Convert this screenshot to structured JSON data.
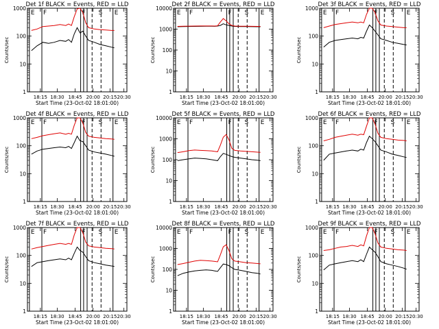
{
  "colors": {
    "black_series": "#000000",
    "red_series": "#e00000",
    "frame": "#000000",
    "background": "#ffffff"
  },
  "shared": {
    "xlabel": "Start Time (23-Oct-02 18:01:00)",
    "ylabel": "Counts/sec",
    "y_tick_labels": [
      "1",
      "10",
      "100",
      "1000"
    ],
    "y_tick_labels_wide": [
      "1",
      "10",
      "100",
      "1000",
      "10000"
    ],
    "x_tick_labels": [
      "18:15",
      "18:30",
      "18:45",
      "20:00",
      "20:15",
      "20:30"
    ],
    "x_range_minutes": [
      18.0,
      19.6
    ],
    "letters": {
      "E": "E",
      "F": "F",
      "S": "S"
    }
  },
  "chart_data": [
    {
      "type": "line",
      "title": "Det 1f BLACK = Events, RED = LLD",
      "ylim": [
        1,
        1000
      ],
      "log_y": true,
      "series": [
        {
          "name": "BLACK",
          "color": "#000000",
          "x": [
            18.0,
            18.1,
            18.2,
            18.3,
            18.4,
            18.5,
            18.6,
            18.65,
            18.7,
            18.75,
            18.8,
            18.85,
            18.9,
            18.95,
            19.0,
            19.1,
            19.2,
            19.3,
            19.4,
            19.45
          ],
          "y": [
            30,
            45,
            60,
            55,
            60,
            70,
            65,
            75,
            60,
            120,
            200,
            130,
            150,
            100,
            70,
            60,
            50,
            45,
            40,
            38
          ]
        },
        {
          "name": "RED",
          "color": "#e00000",
          "x": [
            18.0,
            18.1,
            18.2,
            18.3,
            18.4,
            18.5,
            18.6,
            18.65,
            18.7,
            18.75,
            18.8,
            18.85,
            18.9,
            18.95,
            19.0,
            19.1,
            19.2,
            19.3,
            19.4,
            19.45
          ],
          "y": [
            160,
            180,
            220,
            230,
            240,
            260,
            240,
            270,
            240,
            500,
            950,
            1000,
            700,
            300,
            200,
            180,
            170,
            165,
            160,
            160
          ]
        }
      ]
    },
    {
      "type": "line",
      "title": "Det 2f BLACK = Events, RED = LLD",
      "ylim": [
        1,
        10000
      ],
      "log_y": true,
      "series": [
        {
          "name": "BLACK",
          "color": "#000000",
          "x": [
            18.0,
            18.1,
            18.2,
            18.3,
            18.4,
            18.5,
            18.6,
            18.65,
            18.7,
            18.75,
            18.8,
            18.85,
            18.9,
            18.95,
            19.0,
            19.1,
            19.2,
            19.3,
            19.4,
            19.45
          ],
          "y": [
            1300,
            1320,
            1340,
            1350,
            1360,
            1380,
            1370,
            1360,
            1400,
            1500,
            1800,
            1600,
            1500,
            1400,
            1350,
            1330,
            1320,
            1310,
            1300,
            1300
          ]
        },
        {
          "name": "RED",
          "color": "#e00000",
          "x": [
            18.0,
            18.1,
            18.2,
            18.3,
            18.4,
            18.5,
            18.6,
            18.65,
            18.7,
            18.75,
            18.8,
            18.85,
            18.9,
            18.95,
            19.0,
            19.1,
            19.2,
            19.3,
            19.4,
            19.45
          ],
          "y": [
            1350,
            1370,
            1390,
            1400,
            1410,
            1420,
            1410,
            1400,
            1450,
            2200,
            3200,
            2500,
            1800,
            1500,
            1400,
            1380,
            1370,
            1360,
            1350,
            1350
          ]
        }
      ]
    },
    {
      "type": "line",
      "title": "Det 3f BLACK = Events, RED = LLD",
      "ylim": [
        1,
        1000
      ],
      "log_y": true,
      "series": [
        {
          "name": "BLACK",
          "color": "#000000",
          "x": [
            18.0,
            18.1,
            18.2,
            18.3,
            18.4,
            18.5,
            18.6,
            18.65,
            18.7,
            18.75,
            18.8,
            18.85,
            18.9,
            18.95,
            19.0,
            19.1,
            19.2,
            19.3,
            19.4,
            19.45
          ],
          "y": [
            40,
            60,
            70,
            75,
            80,
            85,
            80,
            90,
            85,
            150,
            250,
            200,
            150,
            110,
            80,
            70,
            60,
            55,
            50,
            48
          ]
        },
        {
          "name": "RED",
          "color": "#e00000",
          "x": [
            18.0,
            18.1,
            18.2,
            18.3,
            18.4,
            18.5,
            18.6,
            18.65,
            18.7,
            18.75,
            18.8,
            18.85,
            18.9,
            18.95,
            19.0,
            19.1,
            19.2,
            19.3,
            19.4,
            19.45
          ],
          "y": [
            200,
            230,
            260,
            280,
            300,
            320,
            300,
            320,
            300,
            600,
            1000,
            1000,
            700,
            350,
            250,
            230,
            220,
            210,
            200,
            200
          ]
        }
      ]
    },
    {
      "type": "line",
      "title": "Det 4f BLACK = Events, RED = LLD",
      "ylim": [
        1,
        1000
      ],
      "log_y": true,
      "series": [
        {
          "name": "BLACK",
          "color": "#000000",
          "x": [
            18.0,
            18.1,
            18.2,
            18.3,
            18.4,
            18.5,
            18.6,
            18.65,
            18.7,
            18.75,
            18.8,
            18.85,
            18.9,
            18.95,
            19.0,
            19.1,
            19.2,
            19.3,
            19.4,
            19.45
          ],
          "y": [
            50,
            65,
            75,
            80,
            85,
            90,
            85,
            95,
            80,
            130,
            220,
            150,
            140,
            100,
            70,
            60,
            55,
            50,
            45,
            42
          ]
        },
        {
          "name": "RED",
          "color": "#e00000",
          "x": [
            18.0,
            18.1,
            18.2,
            18.3,
            18.4,
            18.5,
            18.6,
            18.65,
            18.7,
            18.75,
            18.8,
            18.85,
            18.9,
            18.95,
            19.0,
            19.1,
            19.2,
            19.3,
            19.4,
            19.45
          ],
          "y": [
            180,
            200,
            230,
            250,
            270,
            290,
            260,
            280,
            260,
            550,
            1000,
            1000,
            650,
            300,
            220,
            200,
            190,
            180,
            175,
            170
          ]
        }
      ]
    },
    {
      "type": "line",
      "title": "Det 5f BLACK = Events, RED = LLD",
      "ylim": [
        1,
        10000
      ],
      "log_y": true,
      "series": [
        {
          "name": "BLACK",
          "color": "#000000",
          "x": [
            18.0,
            18.1,
            18.2,
            18.3,
            18.4,
            18.5,
            18.6,
            18.65,
            18.7,
            18.75,
            18.8,
            18.85,
            18.9,
            18.95,
            19.0,
            19.1,
            19.2,
            19.3,
            19.4,
            19.45
          ],
          "y": [
            90,
            100,
            110,
            120,
            115,
            110,
            100,
            95,
            90,
            140,
            200,
            180,
            160,
            140,
            130,
            120,
            110,
            100,
            95,
            90
          ]
        },
        {
          "name": "RED",
          "color": "#e00000",
          "x": [
            18.0,
            18.1,
            18.2,
            18.3,
            18.4,
            18.5,
            18.6,
            18.65,
            18.7,
            18.75,
            18.8,
            18.85,
            18.9,
            18.95,
            19.0,
            19.1,
            19.2,
            19.3,
            19.4,
            19.45
          ],
          "y": [
            220,
            240,
            270,
            290,
            280,
            270,
            260,
            250,
            240,
            500,
            1200,
            1600,
            900,
            350,
            280,
            260,
            250,
            240,
            230,
            225
          ]
        }
      ]
    },
    {
      "type": "line",
      "title": "Det 6f BLACK = Events, RED = LLD",
      "ylim": [
        1,
        1000
      ],
      "log_y": true,
      "series": [
        {
          "name": "BLACK",
          "color": "#000000",
          "x": [
            18.0,
            18.1,
            18.2,
            18.3,
            18.4,
            18.5,
            18.6,
            18.65,
            18.7,
            18.75,
            18.8,
            18.85,
            18.9,
            18.95,
            19.0,
            19.1,
            19.2,
            19.3,
            19.4,
            19.45
          ],
          "y": [
            30,
            50,
            55,
            60,
            65,
            70,
            65,
            75,
            70,
            130,
            220,
            180,
            140,
            100,
            70,
            60,
            50,
            45,
            40,
            38
          ]
        },
        {
          "name": "RED",
          "color": "#e00000",
          "x": [
            18.0,
            18.1,
            18.2,
            18.3,
            18.4,
            18.5,
            18.6,
            18.65,
            18.7,
            18.75,
            18.8,
            18.85,
            18.9,
            18.95,
            19.0,
            19.1,
            19.2,
            19.3,
            19.4,
            19.45
          ],
          "y": [
            150,
            170,
            200,
            220,
            240,
            260,
            240,
            260,
            250,
            500,
            1000,
            1000,
            600,
            280,
            200,
            180,
            170,
            160,
            155,
            150
          ]
        }
      ]
    },
    {
      "type": "line",
      "title": "Det 7f BLACK = Events, RED = LLD",
      "ylim": [
        1,
        1000
      ],
      "log_y": true,
      "series": [
        {
          "name": "BLACK",
          "color": "#000000",
          "x": [
            18.0,
            18.1,
            18.2,
            18.3,
            18.4,
            18.5,
            18.6,
            18.65,
            18.7,
            18.75,
            18.8,
            18.85,
            18.9,
            18.95,
            19.0,
            19.1,
            19.2,
            19.3,
            19.4,
            19.45
          ],
          "y": [
            40,
            55,
            60,
            65,
            70,
            75,
            70,
            80,
            70,
            120,
            200,
            150,
            130,
            90,
            65,
            55,
            50,
            45,
            42,
            40
          ]
        },
        {
          "name": "RED",
          "color": "#e00000",
          "x": [
            18.0,
            18.1,
            18.2,
            18.3,
            18.4,
            18.5,
            18.6,
            18.65,
            18.7,
            18.75,
            18.8,
            18.85,
            18.9,
            18.95,
            19.0,
            19.1,
            19.2,
            19.3,
            19.4,
            19.45
          ],
          "y": [
            170,
            190,
            210,
            230,
            250,
            270,
            250,
            270,
            250,
            550,
            1000,
            1000,
            650,
            300,
            220,
            200,
            190,
            180,
            175,
            170
          ]
        }
      ]
    },
    {
      "type": "line",
      "title": "Det 8f BLACK = Events, RED = LLD",
      "ylim": [
        1,
        10000
      ],
      "log_y": true,
      "series": [
        {
          "name": "BLACK",
          "color": "#000000",
          "x": [
            18.0,
            18.1,
            18.2,
            18.3,
            18.4,
            18.5,
            18.6,
            18.65,
            18.7,
            18.75,
            18.8,
            18.85,
            18.9,
            18.95,
            19.0,
            19.1,
            19.2,
            19.3,
            19.4,
            19.45
          ],
          "y": [
            50,
            65,
            75,
            85,
            90,
            95,
            90,
            85,
            80,
            120,
            180,
            170,
            150,
            120,
            100,
            90,
            80,
            70,
            65,
            60
          ]
        },
        {
          "name": "RED",
          "color": "#e00000",
          "x": [
            18.0,
            18.1,
            18.2,
            18.3,
            18.4,
            18.5,
            18.6,
            18.65,
            18.7,
            18.75,
            18.8,
            18.85,
            18.9,
            18.95,
            19.0,
            19.1,
            19.2,
            19.3,
            19.4,
            19.45
          ],
          "y": [
            170,
            190,
            220,
            250,
            270,
            260,
            250,
            240,
            230,
            500,
            1200,
            1500,
            800,
            320,
            250,
            230,
            210,
            200,
            190,
            185
          ]
        }
      ]
    },
    {
      "type": "line",
      "title": "Det 9f BLACK = Events, RED = LLD",
      "ylim": [
        1,
        1000
      ],
      "log_y": true,
      "series": [
        {
          "name": "BLACK",
          "color": "#000000",
          "x": [
            18.0,
            18.1,
            18.2,
            18.3,
            18.4,
            18.5,
            18.6,
            18.65,
            18.7,
            18.75,
            18.8,
            18.85,
            18.9,
            18.95,
            19.0,
            19.1,
            19.2,
            19.3,
            19.4,
            19.45
          ],
          "y": [
            30,
            45,
            50,
            55,
            60,
            65,
            60,
            70,
            60,
            110,
            200,
            160,
            130,
            90,
            60,
            50,
            45,
            40,
            35,
            32
          ]
        },
        {
          "name": "RED",
          "color": "#e00000",
          "x": [
            18.0,
            18.1,
            18.2,
            18.3,
            18.4,
            18.5,
            18.6,
            18.65,
            18.7,
            18.75,
            18.8,
            18.85,
            18.9,
            18.95,
            19.0,
            19.1,
            19.2,
            19.3,
            19.4,
            19.45
          ],
          "y": [
            150,
            160,
            180,
            200,
            210,
            230,
            210,
            240,
            220,
            500,
            1000,
            1000,
            600,
            280,
            200,
            180,
            170,
            160,
            155,
            150
          ]
        }
      ]
    }
  ]
}
